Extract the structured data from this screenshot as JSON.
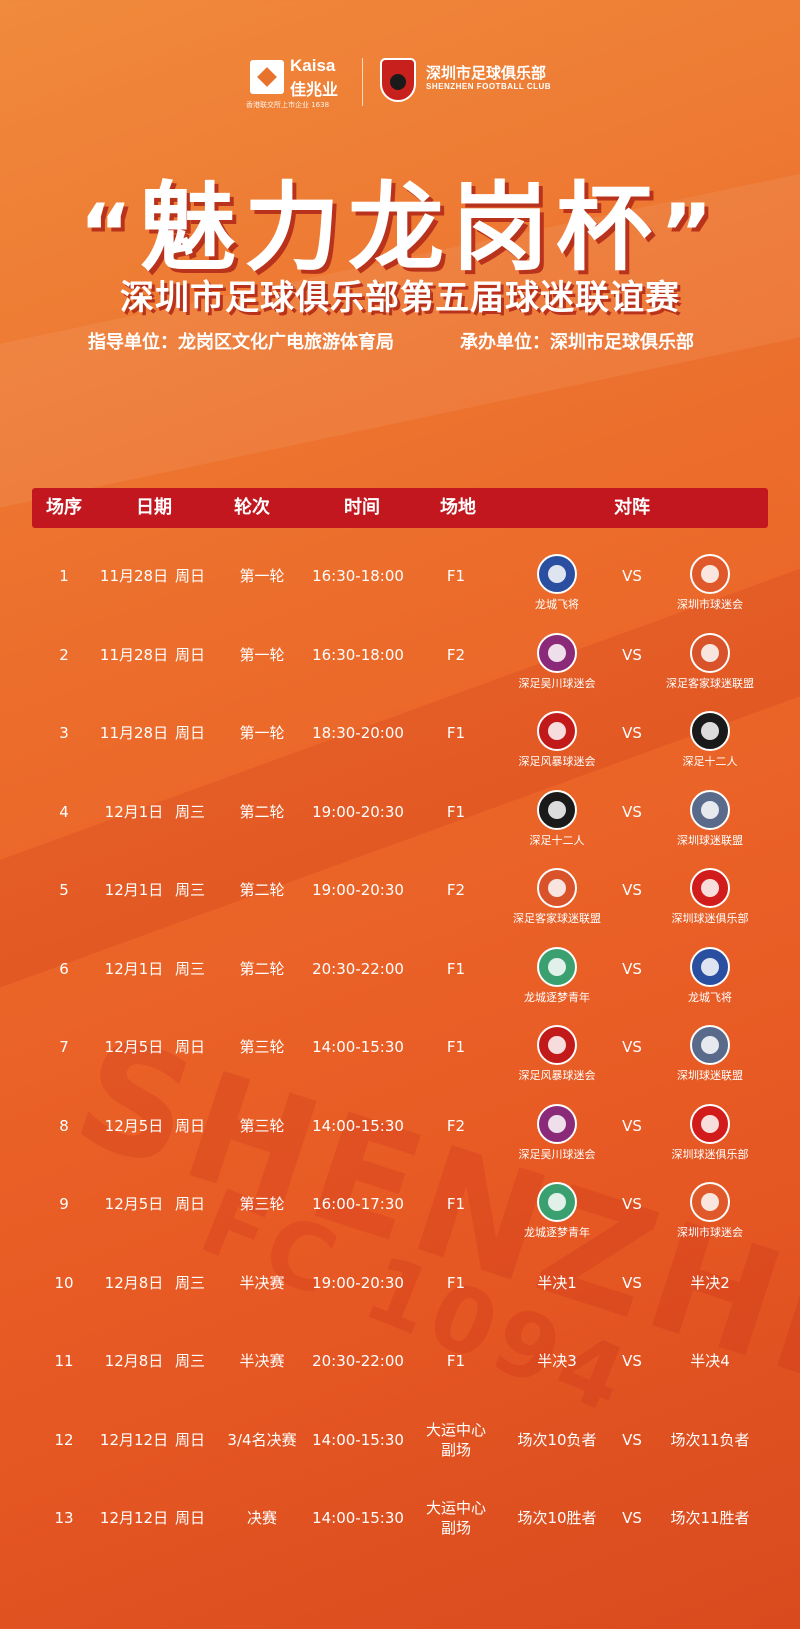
{
  "header": {
    "sponsor_name": "Kaisa",
    "sponsor_cn": "佳兆业",
    "sponsor_sub": "香港联交所上市企业 1638",
    "club_cn": "深圳市足球俱乐部",
    "club_en": "SHENZHEN FOOTBALL CLUB",
    "title": "魅力龙岗杯",
    "title_open_quote": "“",
    "title_close_quote": "”",
    "subtitle": "深圳市足球俱乐部第五届球迷联谊赛",
    "guide_unit": "指导单位：龙岗区文化广电旅游体育局",
    "host_unit": "承办单位：深圳市足球俱乐部"
  },
  "background": {
    "big_text": "SHENZHEN",
    "fc_text": "FC 1094"
  },
  "table": {
    "columns": [
      "场序",
      "日期",
      "轮次",
      "时间",
      "场地",
      "对阵"
    ],
    "vs_label": "VS",
    "rows": [
      {
        "no": "1",
        "date": "11月28日",
        "weekday": "周日",
        "round": "第一轮",
        "time": "16:30-18:00",
        "venue": "F1",
        "venue_line2": "",
        "team_a": "龙城飞将",
        "team_b": "深圳市球迷会",
        "badge_a": "#2a4ea0",
        "badge_b": "#e0592a",
        "has_badges": true
      },
      {
        "no": "2",
        "date": "11月28日",
        "weekday": "周日",
        "round": "第一轮",
        "time": "16:30-18:00",
        "venue": "F2",
        "venue_line2": "",
        "team_a": "深足吴川球迷会",
        "team_b": "深足客家球迷联盟",
        "badge_a": "#8a2a78",
        "badge_b": "#d8522a",
        "has_badges": true
      },
      {
        "no": "3",
        "date": "11月28日",
        "weekday": "周日",
        "round": "第一轮",
        "time": "18:30-20:00",
        "venue": "F1",
        "venue_line2": "",
        "team_a": "深足风暴球迷会",
        "team_b": "深足十二人",
        "badge_a": "#c21a1a",
        "badge_b": "#1a1a1a",
        "has_badges": true
      },
      {
        "no": "4",
        "date": "12月1日",
        "weekday": "周三",
        "round": "第二轮",
        "time": "19:00-20:30",
        "venue": "F1",
        "venue_line2": "",
        "team_a": "深足十二人",
        "team_b": "深圳球迷联盟",
        "badge_a": "#1a1a1a",
        "badge_b": "#5a6a8a",
        "has_badges": true
      },
      {
        "no": "5",
        "date": "12月1日",
        "weekday": "周三",
        "round": "第二轮",
        "time": "19:00-20:30",
        "venue": "F2",
        "venue_line2": "",
        "team_a": "深足客家球迷联盟",
        "team_b": "深圳球迷俱乐部",
        "badge_a": "#d8522a",
        "badge_b": "#d21c1c",
        "has_badges": true
      },
      {
        "no": "6",
        "date": "12月1日",
        "weekday": "周三",
        "round": "第二轮",
        "time": "20:30-22:00",
        "venue": "F1",
        "venue_line2": "",
        "team_a": "龙城逐梦青年",
        "team_b": "龙城飞将",
        "badge_a": "#3aa070",
        "badge_b": "#2a4ea0",
        "has_badges": true
      },
      {
        "no": "7",
        "date": "12月5日",
        "weekday": "周日",
        "round": "第三轮",
        "time": "14:00-15:30",
        "venue": "F1",
        "venue_line2": "",
        "team_a": "深足风暴球迷会",
        "team_b": "深圳球迷联盟",
        "badge_a": "#c21a1a",
        "badge_b": "#5a6a8a",
        "has_badges": true
      },
      {
        "no": "8",
        "date": "12月5日",
        "weekday": "周日",
        "round": "第三轮",
        "time": "14:00-15:30",
        "venue": "F2",
        "venue_line2": "",
        "team_a": "深足吴川球迷会",
        "team_b": "深圳球迷俱乐部",
        "badge_a": "#8a2a78",
        "badge_b": "#d21c1c",
        "has_badges": true
      },
      {
        "no": "9",
        "date": "12月5日",
        "weekday": "周日",
        "round": "第三轮",
        "time": "16:00-17:30",
        "venue": "F1",
        "venue_line2": "",
        "team_a": "龙城逐梦青年",
        "team_b": "深圳市球迷会",
        "badge_a": "#3aa070",
        "badge_b": "#e0592a",
        "has_badges": true
      },
      {
        "no": "10",
        "date": "12月8日",
        "weekday": "周三",
        "round": "半决赛",
        "time": "19:00-20:30",
        "venue": "F1",
        "venue_line2": "",
        "team_a": "半决1",
        "team_b": "半决2",
        "has_badges": false
      },
      {
        "no": "11",
        "date": "12月8日",
        "weekday": "周三",
        "round": "半决赛",
        "time": "20:30-22:00",
        "venue": "F1",
        "venue_line2": "",
        "team_a": "半决3",
        "team_b": "半决4",
        "has_badges": false
      },
      {
        "no": "12",
        "date": "12月12日",
        "weekday": "周日",
        "round": "3/4名决赛",
        "time": "14:00-15:30",
        "venue": "大运中心",
        "venue_line2": "副场",
        "team_a": "场次10负者",
        "team_b": "场次11负者",
        "has_badges": false
      },
      {
        "no": "13",
        "date": "12月12日",
        "weekday": "周日",
        "round": "决赛",
        "time": "14:00-15:30",
        "venue": "大运中心",
        "venue_line2": "副场",
        "team_a": "场次10胜者",
        "team_b": "场次11胜者",
        "has_badges": false
      }
    ]
  }
}
